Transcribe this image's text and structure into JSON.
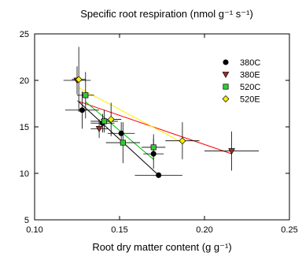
{
  "chart_data": {
    "type": "scatter",
    "title": "Specific root respiration (nmol g⁻¹ s⁻¹)",
    "xlabel": "Root dry matter content (g g⁻¹)",
    "ylabel": "",
    "xlim": [
      0.1,
      0.25
    ],
    "ylim": [
      5,
      25
    ],
    "xticks": [
      "0.10",
      "0.15",
      "0.20",
      "0.25"
    ],
    "yticks": [
      "5",
      "10",
      "15",
      "20",
      "25"
    ],
    "grid": false,
    "legend_position": "top-right",
    "series": [
      {
        "name": "380C",
        "marker": "circle",
        "color": "#000000",
        "line_color": "#000000",
        "points": [
          {
            "x": 0.128,
            "y": 16.8,
            "xerr": 0.01,
            "yerr": 2.0
          },
          {
            "x": 0.14,
            "y": 15.4,
            "xerr": 0.007,
            "yerr": 1.0
          },
          {
            "x": 0.151,
            "y": 14.3,
            "xerr": 0.008,
            "yerr": 1.2
          },
          {
            "x": 0.17,
            "y": 12.1,
            "xerr": 0.006,
            "yerr": 1.6
          },
          {
            "x": 0.173,
            "y": 9.8,
            "xerr": 0.014,
            "yerr": 0.0
          }
        ],
        "fit": [
          [
            0.126,
            17.7
          ],
          [
            0.173,
            9.8
          ]
        ]
      },
      {
        "name": "380E",
        "marker": "triangle-down",
        "color": "#a52a2a",
        "line_color": "#ff0000",
        "points": [
          {
            "x": 0.125,
            "y": 20.0,
            "xerr": 0.008,
            "yerr": 1.5
          },
          {
            "x": 0.138,
            "y": 14.8,
            "xerr": 0.005,
            "yerr": 1.0
          },
          {
            "x": 0.216,
            "y": 12.4,
            "xerr": 0.016,
            "yerr": 2.1
          }
        ],
        "fit": [
          [
            0.125,
            17.8
          ],
          [
            0.216,
            12.1
          ]
        ]
      },
      {
        "name": "520C",
        "marker": "square",
        "color": "#33cc33",
        "line_color": "#00bb00",
        "points": [
          {
            "x": 0.13,
            "y": 18.4,
            "xerr": 0.005,
            "yerr": 2.5
          },
          {
            "x": 0.141,
            "y": 15.6,
            "xerr": 0.008,
            "yerr": 1.2
          },
          {
            "x": 0.152,
            "y": 13.3,
            "xerr": 0.01,
            "yerr": 2.2
          },
          {
            "x": 0.17,
            "y": 12.8,
            "xerr": 0.007,
            "yerr": 1.4
          }
        ],
        "fit": [
          [
            0.13,
            17.7
          ],
          [
            0.17,
            11.5
          ]
        ]
      },
      {
        "name": "520E",
        "marker": "diamond",
        "color": "#ffee00",
        "line_color": "#ffee00",
        "points": [
          {
            "x": 0.126,
            "y": 20.1,
            "xerr": 0.004,
            "yerr": 3.5
          },
          {
            "x": 0.145,
            "y": 15.8,
            "xerr": 0.006,
            "yerr": 1.8
          },
          {
            "x": 0.187,
            "y": 13.5,
            "xerr": 0.01,
            "yerr": 2.0
          }
        ],
        "fit": [
          [
            0.126,
            19.2
          ],
          [
            0.187,
            13.3
          ]
        ]
      }
    ]
  }
}
